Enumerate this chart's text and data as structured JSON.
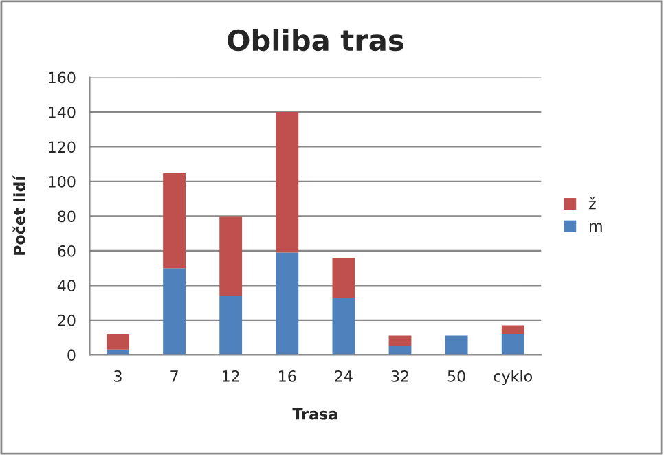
{
  "chart_data": {
    "type": "bar",
    "stacked": true,
    "title": "Obliba tras",
    "xlabel": "Trasa",
    "ylabel": "Počet lidí",
    "categories": [
      "3",
      "7",
      "12",
      "16",
      "24",
      "32",
      "50",
      "cyklo"
    ],
    "series": [
      {
        "name": "m",
        "color": "#4f81bd",
        "values": [
          3,
          50,
          34,
          59,
          33,
          5,
          11,
          12
        ]
      },
      {
        "name": "ž",
        "color": "#c0504d",
        "values": [
          9,
          55,
          46,
          81,
          23,
          6,
          null,
          5
        ]
      }
    ],
    "ylim": [
      0,
      160
    ],
    "yticks": [
      0,
      20,
      40,
      60,
      80,
      100,
      120,
      140,
      160
    ],
    "grid": "y",
    "legend": "right"
  }
}
